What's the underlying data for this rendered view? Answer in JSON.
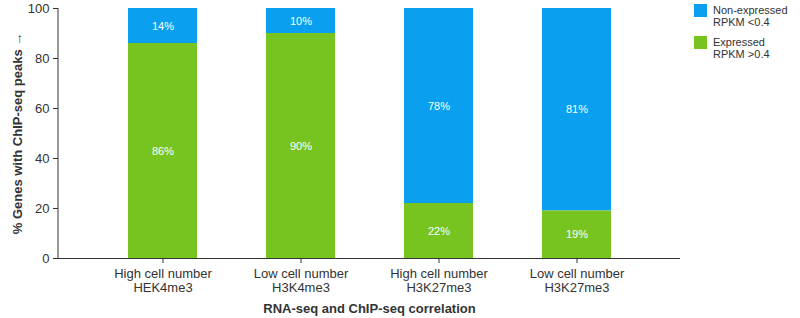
{
  "chart_data": {
    "type": "bar",
    "stacked": true,
    "data_labels": true,
    "grid": false,
    "legend": "top-right",
    "x_label": "RNA-seq and ChIP-seq correlation",
    "y_label": "% Genes with ChIP-seq peaks",
    "categories": [
      "High cell number\nHEK4me3",
      "Low cell number\nH3K4me3",
      "High cell number\nH3K27me3",
      "Low cell number\nH3K27me3"
    ],
    "ylim": [
      0,
      100
    ],
    "yticks": [
      0,
      20,
      40,
      60,
      80,
      100
    ],
    "series": [
      {
        "name": "Non-expressed\nRPKM <0.4",
        "color": "#0b9ff0",
        "values": [
          14,
          10,
          78,
          81
        ],
        "value_labels": [
          "14%",
          "10%",
          "78%",
          "81%"
        ]
      },
      {
        "name": "Expressed\nRPKM >0.4",
        "color": "#77c420",
        "values": [
          86,
          90,
          22,
          19
        ],
        "value_labels": [
          "86%",
          "90%",
          "22%",
          "19%"
        ]
      }
    ]
  }
}
